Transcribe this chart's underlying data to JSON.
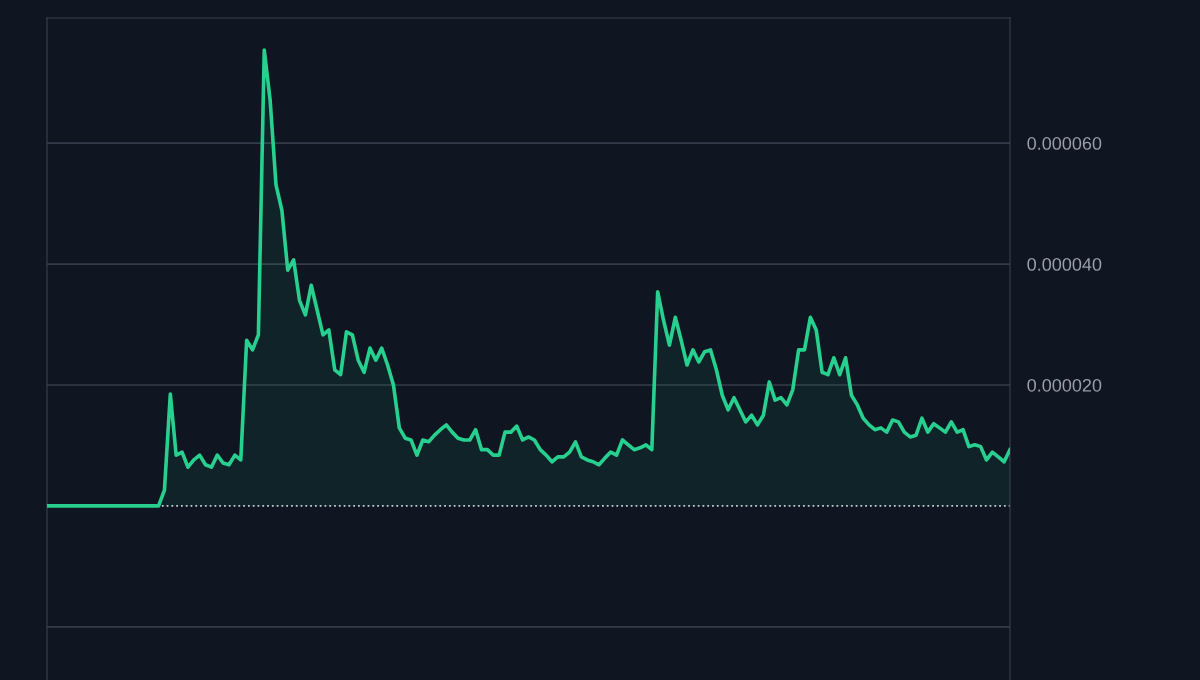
{
  "chart_data": {
    "type": "area",
    "categories": [
      null,
      null,
      null,
      null,
      null,
      null,
      null,
      null,
      null,
      null,
      null,
      null,
      null,
      null,
      null,
      null,
      null,
      null,
      null,
      null,
      null,
      null,
      null,
      null,
      null,
      null,
      null,
      null,
      null,
      null,
      null,
      null,
      null,
      null,
      null,
      null,
      null,
      null,
      null,
      null,
      null,
      null,
      null,
      null,
      null,
      null,
      null,
      null,
      null,
      null,
      null,
      null,
      null,
      null,
      null,
      null,
      null,
      null,
      null,
      null,
      null,
      null,
      null,
      null,
      null,
      null,
      null,
      null,
      null,
      null,
      null,
      null,
      null,
      null,
      null,
      null,
      null,
      null,
      null,
      null,
      null,
      null,
      null,
      null,
      null,
      null,
      null,
      null,
      null,
      null,
      null,
      null,
      null,
      null,
      null,
      null,
      null,
      null,
      null,
      null,
      null,
      null,
      null,
      null,
      null,
      null,
      null,
      null,
      null,
      null,
      null,
      null,
      null,
      null,
      null,
      null,
      null,
      null,
      null,
      null,
      null,
      null,
      null,
      null,
      null,
      null,
      null,
      null,
      null,
      null,
      null,
      null,
      null,
      null,
      null,
      null,
      null,
      null,
      null,
      null,
      null,
      null,
      null,
      null,
      null,
      null,
      null,
      null,
      null,
      null,
      null,
      null,
      null,
      null,
      null,
      null,
      null,
      null,
      null,
      null,
      null,
      null,
      null,
      null,
      null
    ],
    "series": [
      {
        "color": "#27d08e",
        "values": [
          0,
          0,
          0,
          0,
          0,
          0,
          0,
          0,
          0,
          0,
          0,
          0,
          0,
          0,
          0,
          0,
          0,
          0,
          0,
          0,
          2.6e-06,
          1.85e-05,
          8.4e-06,
          8.9e-06,
          6.4e-06,
          7.6e-06,
          8.4e-06,
          6.8e-06,
          6.4e-06,
          8.4e-06,
          7.1e-06,
          6.8e-06,
          8.4e-06,
          7.6e-06,
          2.74e-05,
          2.58e-05,
          2.83e-05,
          7.54e-05,
          6.71e-05,
          5.31e-05,
          4.89e-05,
          3.9e-05,
          4.07e-05,
          3.4e-05,
          3.16e-05,
          3.65e-05,
          3.24e-05,
          2.83e-05,
          2.91e-05,
          2.25e-05,
          2.17e-05,
          2.88e-05,
          2.83e-05,
          2.41e-05,
          2.21e-05,
          2.61e-05,
          2.41e-05,
          2.61e-05,
          2.33e-05,
          2e-05,
          1.29e-05,
          1.12e-05,
          1.09e-05,
          8.4e-06,
          1.09e-05,
          1.06e-05,
          1.17e-05,
          1.26e-05,
          1.34e-05,
          1.22e-05,
          1.12e-05,
          1.09e-05,
          1.09e-05,
          1.26e-05,
          9.3e-06,
          9.3e-06,
          8.4e-06,
          8.4e-06,
          1.22e-05,
          1.22e-05,
          1.32e-05,
          1.09e-05,
          1.14e-05,
          1.09e-05,
          9.3e-06,
          8.4e-06,
          7.3e-06,
          8.1e-06,
          8.1e-06,
          8.9e-06,
          1.06e-05,
          8.1e-06,
          7.6e-06,
          7.3e-06,
          6.8e-06,
          7.9e-06,
          8.9e-06,
          8.4e-06,
          1.09e-05,
          1.01e-05,
          9.3e-06,
          9.6e-06,
          1.01e-05,
          9.3e-06,
          3.54e-05,
          3.07e-05,
          2.66e-05,
          3.12e-05,
          2.74e-05,
          2.33e-05,
          2.58e-05,
          2.38e-05,
          2.55e-05,
          2.58e-05,
          2.25e-05,
          1.83e-05,
          1.59e-05,
          1.79e-05,
          1.59e-05,
          1.39e-05,
          1.5e-05,
          1.34e-05,
          1.5e-05,
          2.05e-05,
          1.75e-05,
          1.79e-05,
          1.67e-05,
          1.92e-05,
          2.58e-05,
          2.58e-05,
          3.12e-05,
          2.91e-05,
          2.21e-05,
          2.17e-05,
          2.45e-05,
          2.17e-05,
          2.45e-05,
          1.83e-05,
          1.67e-05,
          1.45e-05,
          1.34e-05,
          1.26e-05,
          1.29e-05,
          1.22e-05,
          1.42e-05,
          1.39e-05,
          1.22e-05,
          1.14e-05,
          1.17e-05,
          1.45e-05,
          1.22e-05,
          1.36e-05,
          1.29e-05,
          1.22e-05,
          1.39e-05,
          1.22e-05,
          1.26e-05,
          9.8e-06,
          1.01e-05,
          9.8e-06,
          7.6e-06,
          8.9e-06,
          8.1e-06,
          7.3e-06,
          9.3e-06
        ]
      }
    ],
    "ylim": [
      -2.88e-05,
      8.07e-05
    ],
    "yticks": [
      {
        "value": -2e-05,
        "label": null
      },
      {
        "value": 2e-05,
        "label": "0.000020"
      },
      {
        "value": 4e-05,
        "label": "0.000040"
      },
      {
        "value": 6e-05,
        "label": "0.000060"
      }
    ],
    "ref_lines": [
      {
        "axis": "y",
        "value": 0,
        "label": null,
        "color": "#c8ccd4",
        "line_style": "dotted"
      }
    ],
    "grid": "y",
    "tick_labels": "y"
  }
}
